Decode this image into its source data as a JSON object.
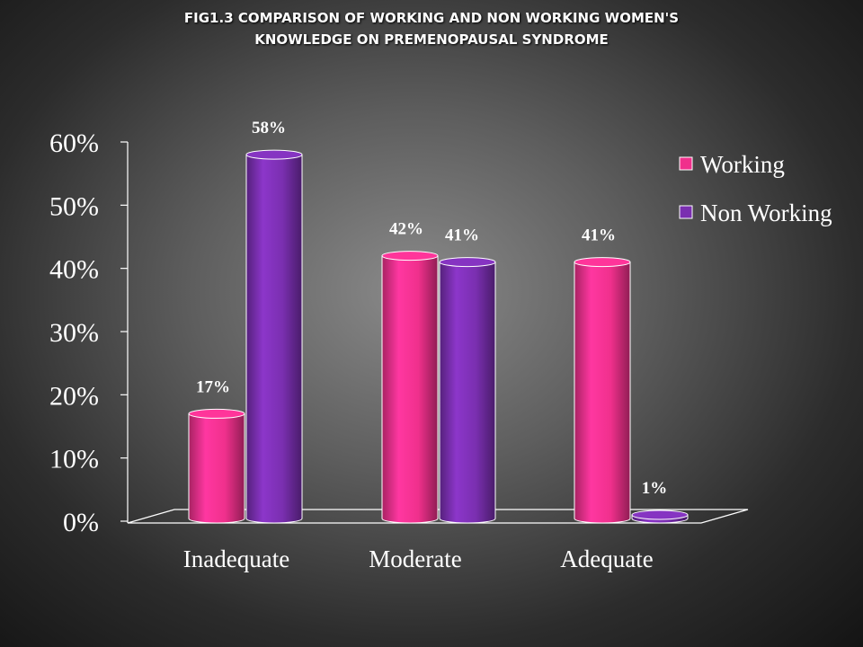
{
  "chart_data": {
    "type": "bar",
    "title_lines": [
      "FIG1.3  COMPARISON OF WORKING AND NON WORKING WOMEN'S",
      "KNOWLEDGE ON PREMENOPAUSAL SYNDROME"
    ],
    "categories": [
      "Inadequate",
      "Moderate",
      "Adequate"
    ],
    "series": [
      {
        "name": "Working",
        "values": [
          17,
          42,
          41
        ],
        "labels": [
          "17%",
          "42%",
          "41%"
        ],
        "color": "#f0308c"
      },
      {
        "name": "Non Working",
        "values": [
          58,
          41,
          1
        ],
        "labels": [
          "58%",
          "41%",
          "1%"
        ],
        "color": "#7a2fb0"
      }
    ],
    "yticks": [
      "0%",
      "10%",
      "20%",
      "30%",
      "40%",
      "50%",
      "60%"
    ],
    "ylim": [
      0,
      60
    ],
    "legend_position": "right",
    "grid": false,
    "style": "3d-cylinder"
  }
}
